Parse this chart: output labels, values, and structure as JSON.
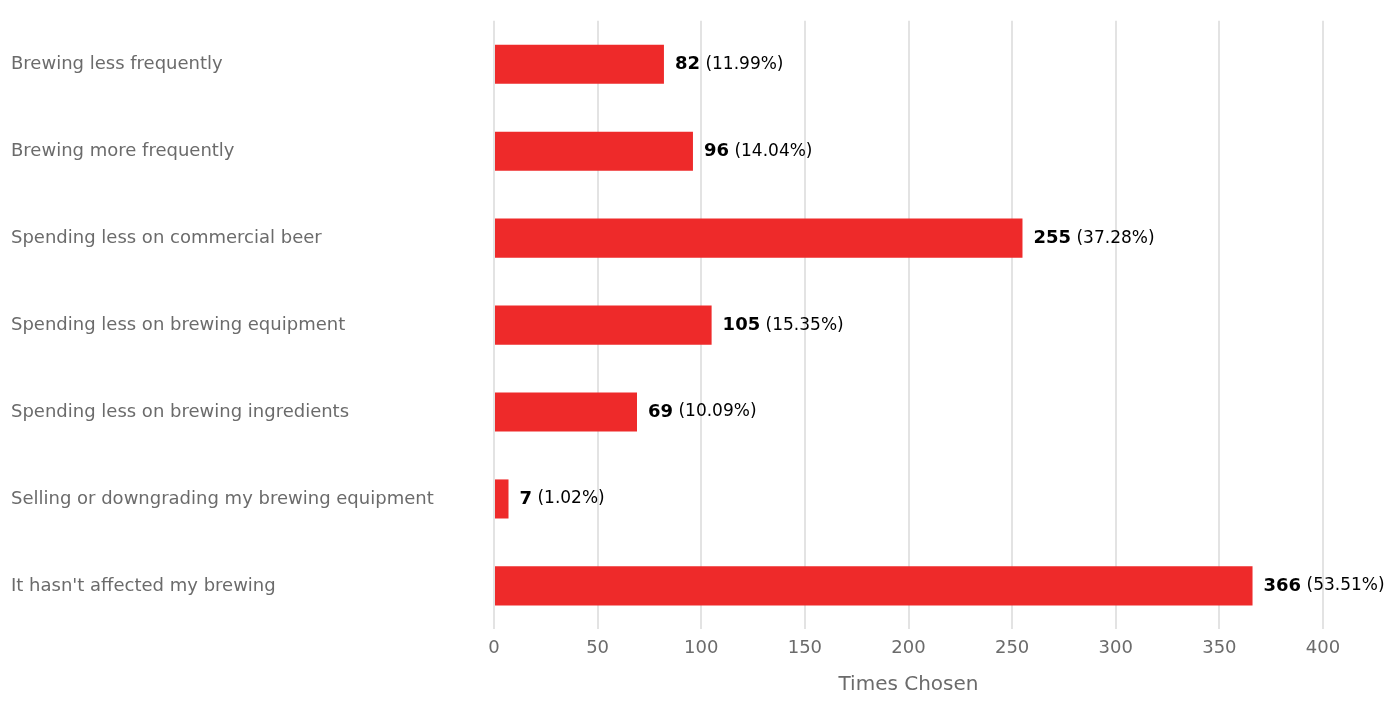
{
  "chart_data": {
    "type": "bar",
    "orientation": "horizontal",
    "xlabel": "Times Chosen",
    "categories": [
      "Brewing less frequently",
      "Brewing more frequently",
      "Spending less on commercial beer",
      "Spending less on brewing equipment",
      "Spending less on brewing ingredients",
      "Selling or downgrading my brewing equipment",
      "It hasn't affected my brewing"
    ],
    "values": [
      82,
      96,
      255,
      105,
      69,
      7,
      366
    ],
    "value_labels": [
      "82 (11.99%)",
      "96 (14.04%)",
      "255 (37.28%)",
      "105 (15.35%)",
      "69 (10.09%)",
      "7 (1.02%)",
      "366 (53.51%)"
    ],
    "color": "#ee2a2a",
    "xlim": [
      0,
      400
    ],
    "xticks": [
      0,
      50,
      100,
      150,
      200,
      250,
      300,
      350,
      400
    ],
    "grid": "x",
    "legend": false
  }
}
